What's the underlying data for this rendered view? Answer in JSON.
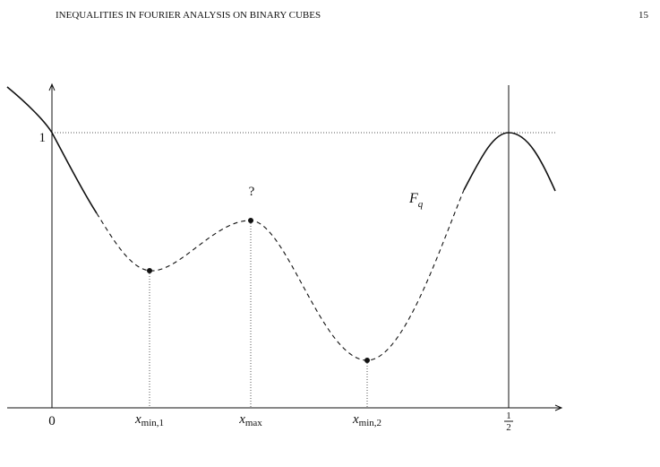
{
  "header": {
    "title": "INEQUALITIES IN FOURIER ANALYSIS ON BINARY CUBES",
    "page_number": "15"
  },
  "figure": {
    "y_label_one": "1",
    "question_mark": "?",
    "curve_label": {
      "base": "F",
      "sub": "q"
    },
    "x_labels": {
      "zero": "0",
      "x_min_1": {
        "base": "x",
        "sub": "min,1"
      },
      "x_max": {
        "base": "x",
        "sub": "max"
      },
      "x_min_2": {
        "base": "x",
        "sub": "min,2"
      },
      "half": {
        "numerator": "1",
        "denominator": "2"
      }
    }
  }
}
